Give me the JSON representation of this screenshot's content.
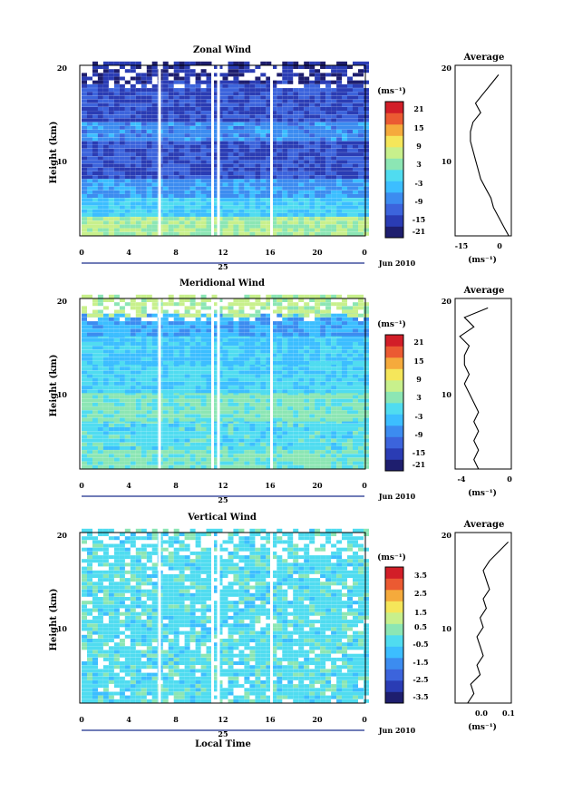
{
  "panels": [
    {
      "title": "Zonal Wind",
      "ylabel": "Height (km)",
      "colorbar_unit": "(ms⁻¹)",
      "colorbar_ticks": [
        "21",
        "15",
        "9",
        "3",
        "-3",
        "-9",
        "-15",
        "-21"
      ],
      "avg_title": "Average",
      "avg_xticks": [
        "-15",
        "0"
      ],
      "avg_unit": "(ms⁻¹)"
    },
    {
      "title": "Meridional Wind",
      "ylabel": "Height (km)",
      "colorbar_unit": "(ms⁻¹)",
      "colorbar_ticks": [
        "21",
        "15",
        "9",
        "3",
        "-3",
        "-9",
        "-15",
        "-21"
      ],
      "avg_title": "Average",
      "avg_xticks": [
        "-4",
        "0"
      ],
      "avg_unit": "(ms⁻¹)"
    },
    {
      "title": "Vertical Wind",
      "ylabel": "Height (km)",
      "colorbar_unit": "(ms⁻¹)",
      "colorbar_ticks": [
        "3.5",
        "2.5",
        "1.5",
        "0.5",
        "-0.5",
        "-1.5",
        "-2.5",
        "-3.5"
      ],
      "avg_title": "Average",
      "avg_xticks": [
        "0.0",
        "0.1"
      ],
      "avg_unit": "(ms⁻¹)",
      "xlabel": "Local Time"
    }
  ],
  "shared": {
    "y_ticks": [
      "20",
      "10"
    ],
    "x_ticks": [
      "0",
      "4",
      "8",
      "12",
      "16",
      "20",
      "0"
    ],
    "day_label": "25",
    "month_label": "Jun 2010"
  },
  "palette": [
    "#1e1e6e",
    "#2a3cb4",
    "#3c64dc",
    "#3c8cf0",
    "#3cbeff",
    "#50dcf0",
    "#8ce6b4",
    "#c8f08c",
    "#f5e65a",
    "#f5aa3c",
    "#eb5a32",
    "#d21e28"
  ],
  "chart_data": [
    {
      "type": "heatmap",
      "title": "Zonal Wind",
      "x": "local time (h)",
      "xlim": [
        0,
        24
      ],
      "ylabel": "Height (km)",
      "ylim": [
        2,
        20
      ],
      "clim": [
        -24,
        24
      ],
      "gaps_hours": [
        6.5,
        11,
        11.5,
        16
      ],
      "bands": [
        {
          "h": [
            2,
            4
          ],
          "value": 4
        },
        {
          "h": [
            4,
            6
          ],
          "value": -4
        },
        {
          "h": [
            6,
            8
          ],
          "value": -9
        },
        {
          "h": [
            8,
            12
          ],
          "value": -16
        },
        {
          "h": [
            12,
            14
          ],
          "value": -10
        },
        {
          "h": [
            14,
            18
          ],
          "value": -16
        },
        {
          "h": [
            18,
            20
          ],
          "value": -20
        }
      ],
      "average_profile": {
        "xlim": [
          -20,
          2
        ],
        "height": [
          2,
          3,
          4,
          5,
          6,
          7,
          8,
          9,
          10,
          11,
          12,
          13,
          14,
          15,
          16,
          17,
          18,
          19
        ],
        "value": [
          1,
          -1,
          -3,
          -5,
          -6,
          -8,
          -10,
          -11,
          -12,
          -13,
          -14,
          -14,
          -13,
          -10,
          -12,
          -9,
          -6,
          -3
        ]
      }
    },
    {
      "type": "heatmap",
      "title": "Meridional Wind",
      "x": "local time (h)",
      "xlim": [
        0,
        24
      ],
      "ylabel": "Height (km)",
      "ylim": [
        2,
        20
      ],
      "clim": [
        -24,
        24
      ],
      "gaps_hours": [
        6.5,
        11,
        11.5,
        16
      ],
      "bands": [
        {
          "h": [
            2,
            4
          ],
          "value": 1
        },
        {
          "h": [
            4,
            7
          ],
          "value": -2
        },
        {
          "h": [
            7,
            10
          ],
          "value": 1
        },
        {
          "h": [
            10,
            13
          ],
          "value": -3
        },
        {
          "h": [
            13,
            16
          ],
          "value": -5
        },
        {
          "h": [
            16,
            18
          ],
          "value": -7
        },
        {
          "h": [
            18,
            20
          ],
          "value": 5
        }
      ],
      "average_profile": {
        "xlim": [
          -6,
          6
        ],
        "height": [
          2,
          3,
          4,
          5,
          6,
          7,
          8,
          9,
          10,
          11,
          12,
          13,
          14,
          15,
          16,
          17,
          18,
          19
        ],
        "value": [
          -1,
          -2,
          -1,
          -2,
          -1,
          -2,
          -1,
          -2,
          -3,
          -4,
          -3,
          -4,
          -4,
          -3,
          -5,
          -2,
          -4,
          1
        ]
      }
    },
    {
      "type": "heatmap",
      "title": "Vertical Wind",
      "x": "local time (h)",
      "xlim": [
        0,
        24
      ],
      "ylabel": "Height (km)",
      "ylim": [
        2,
        20
      ],
      "clim": [
        -4,
        4
      ],
      "gaps_hours": [
        6.5,
        11,
        11.5,
        16
      ],
      "bands": [
        {
          "h": [
            2,
            20
          ],
          "value": -0.3
        }
      ],
      "average_profile": {
        "xlim": [
          -0.08,
          0.1
        ],
        "height": [
          2,
          3,
          4,
          5,
          6,
          7,
          8,
          9,
          10,
          11,
          12,
          13,
          14,
          15,
          16,
          17,
          18,
          19
        ],
        "value": [
          -0.04,
          -0.02,
          -0.03,
          0.0,
          -0.01,
          0.01,
          0.0,
          -0.01,
          0.01,
          0.0,
          0.02,
          0.01,
          0.03,
          0.02,
          0.01,
          0.03,
          0.06,
          0.09
        ]
      }
    }
  ]
}
